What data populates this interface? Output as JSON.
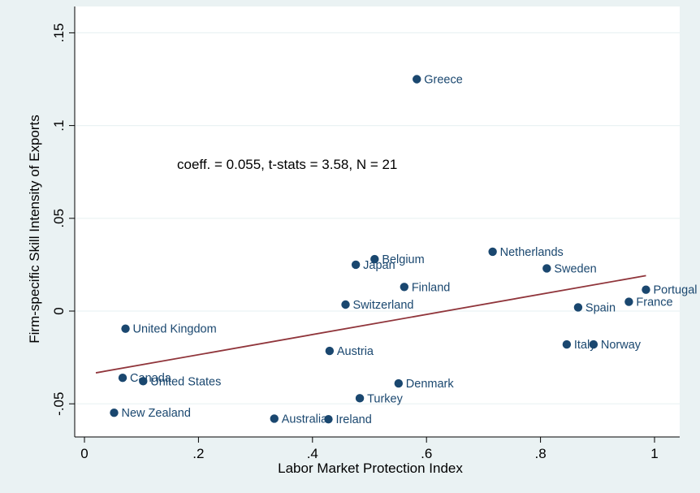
{
  "chart_data": {
    "type": "scatter",
    "title": "",
    "xlabel": "Labor Market Protection Index",
    "ylabel": "Firm-specific Skill Intensity of Exports",
    "xlim": [
      0,
      1
    ],
    "ylim": [
      -0.05,
      0.15
    ],
    "xticks": [
      {
        "value": 0,
        "label": "0"
      },
      {
        "value": 0.2,
        "label": ".2"
      },
      {
        "value": 0.4,
        "label": ".4"
      },
      {
        "value": 0.6,
        "label": ".6"
      },
      {
        "value": 0.8,
        "label": ".8"
      },
      {
        "value": 1,
        "label": "1"
      }
    ],
    "yticks": [
      {
        "value": -0.05,
        "label": "-.05"
      },
      {
        "value": 0,
        "label": "0"
      },
      {
        "value": 0.05,
        "label": ".05"
      },
      {
        "value": 0.1,
        "label": ".1"
      },
      {
        "value": 0.15,
        "label": ".15"
      }
    ],
    "grid": "horizontal",
    "annotation": "coeff. = 0.055, t-stats = 3.58, N = 21",
    "fit_line": {
      "x": [
        0.02,
        0.985
      ],
      "y": [
        -0.0333,
        0.0191
      ]
    },
    "points": [
      {
        "label": "Greece",
        "x": 0.583,
        "y": 0.125
      },
      {
        "label": "Netherlands",
        "x": 0.716,
        "y": 0.032
      },
      {
        "label": "Belgium",
        "x": 0.509,
        "y": 0.028
      },
      {
        "label": "Japan",
        "x": 0.476,
        "y": 0.025
      },
      {
        "label": "Sweden",
        "x": 0.811,
        "y": 0.023
      },
      {
        "label": "Finland",
        "x": 0.561,
        "y": 0.013
      },
      {
        "label": "Portugal",
        "x": 0.985,
        "y": 0.0115
      },
      {
        "label": "France",
        "x": 0.955,
        "y": 0.005
      },
      {
        "label": "Switzerland",
        "x": 0.458,
        "y": 0.0035
      },
      {
        "label": "Spain",
        "x": 0.866,
        "y": 0.002
      },
      {
        "label": "United Kingdom",
        "x": 0.072,
        "y": -0.0095
      },
      {
        "label": "Italy",
        "x": 0.846,
        "y": -0.018
      },
      {
        "label": "Norway",
        "x": 0.893,
        "y": -0.018
      },
      {
        "label": "Austria",
        "x": 0.43,
        "y": -0.0215
      },
      {
        "label": "Canada",
        "x": 0.067,
        "y": -0.036
      },
      {
        "label": "United States",
        "x": 0.103,
        "y": -0.0378
      },
      {
        "label": "Denmark",
        "x": 0.551,
        "y": -0.039
      },
      {
        "label": "Turkey",
        "x": 0.483,
        "y": -0.047
      },
      {
        "label": "New Zealand",
        "x": 0.052,
        "y": -0.0548
      },
      {
        "label": "Australia",
        "x": 0.333,
        "y": -0.058
      },
      {
        "label": "Ireland",
        "x": 0.428,
        "y": -0.0583
      }
    ]
  },
  "colors": {
    "outer_background": "#eaf2f3",
    "plot_background": "#ffffff",
    "marker": "#1a476f",
    "label_text": "#1a476f",
    "fit_line": "#90353b",
    "grid": "#eaf2f3",
    "axis": "#000000"
  }
}
